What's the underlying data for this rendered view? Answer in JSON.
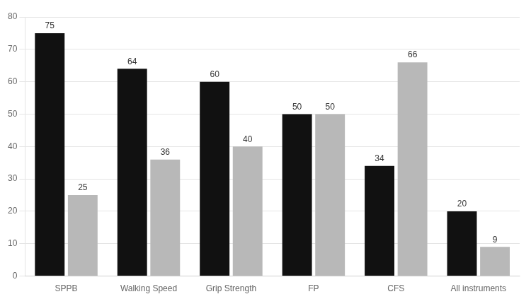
{
  "chart_data": {
    "type": "bar",
    "categories": [
      "SPPB",
      "Walking Speed",
      "Grip Strength",
      "FP",
      "CFS",
      "All instruments"
    ],
    "series": [
      {
        "color": "#111111",
        "values": [
          75,
          64,
          60,
          50,
          34,
          20
        ]
      },
      {
        "color": "#b8b8b8",
        "values": [
          25,
          36,
          40,
          50,
          66,
          9
        ]
      }
    ],
    "ylim": [
      0,
      80
    ],
    "yticks": [
      0,
      10,
      20,
      30,
      40,
      50,
      60,
      70,
      80
    ],
    "grid": "y",
    "data_labels": true
  }
}
